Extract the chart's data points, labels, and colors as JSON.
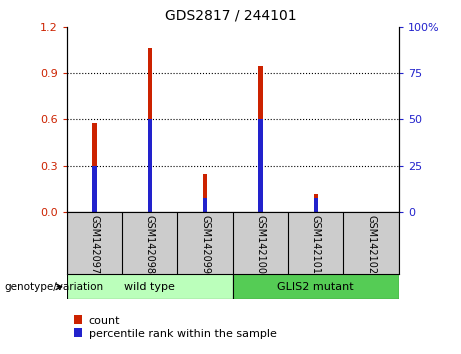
{
  "title": "GDS2817 / 244101",
  "samples": [
    "GSM142097",
    "GSM142098",
    "GSM142099",
    "GSM142100",
    "GSM142101",
    "GSM142102"
  ],
  "count_values": [
    0.575,
    1.06,
    0.245,
    0.945,
    0.12,
    0.0
  ],
  "percentile_values": [
    25.0,
    50.0,
    8.0,
    50.0,
    8.0,
    0.0
  ],
  "ylim_left": [
    0,
    1.2
  ],
  "ylim_right": [
    0,
    100
  ],
  "yticks_left": [
    0,
    0.3,
    0.6,
    0.9,
    1.2
  ],
  "yticks_right": [
    0,
    25,
    50,
    75,
    100
  ],
  "bar_width": 0.08,
  "count_color": "#cc2200",
  "percentile_color": "#2222cc",
  "groups": [
    {
      "label": "wild type",
      "indices": [
        0,
        1,
        2
      ],
      "color": "#bbffbb"
    },
    {
      "label": "GLIS2 mutant",
      "indices": [
        3,
        4,
        5
      ],
      "color": "#55cc55"
    }
  ],
  "group_label": "genotype/variation",
  "bg_color": "#ffffff",
  "plot_bg": "#ffffff",
  "tick_label_area_color": "#cccccc",
  "legend_count_label": "count",
  "legend_percentile_label": "percentile rank within the sample"
}
